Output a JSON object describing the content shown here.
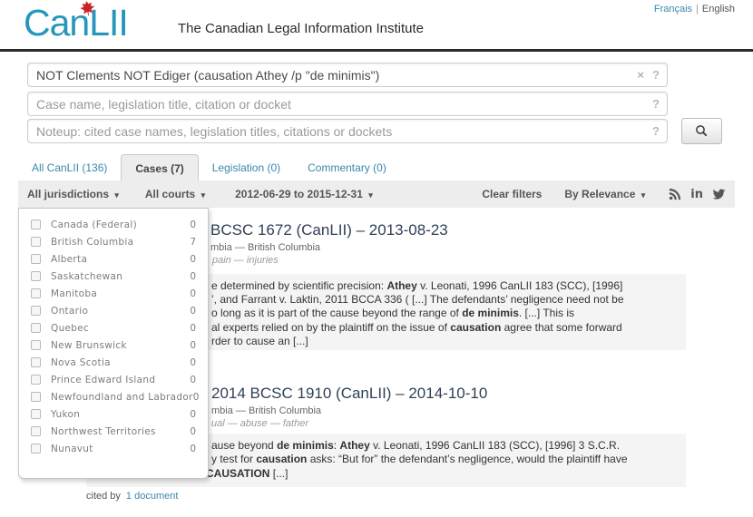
{
  "colors": {
    "logo_blue": "#2597ba",
    "leaf_red": "#cc2127",
    "link_blue": "#3a87ad",
    "filterbar_gray": "#ededed",
    "snippet_gray": "#f4f4f4"
  },
  "header": {
    "logo_text": "CanLII",
    "logo_leaf_icon": "maple-leaf-icon",
    "tagline": "The Canadian Legal Information Institute",
    "lang_french": "Français",
    "lang_separator": "|",
    "lang_english": "English"
  },
  "search": {
    "query": {
      "value": "NOT Clements NOT Ediger (causation Athey /p \"de minimis\")",
      "clear_icon": "×",
      "help_icon": "?"
    },
    "title_field": {
      "placeholder": "Case name, legislation title, citation or docket",
      "help_icon": "?"
    },
    "noteup_field": {
      "placeholder": "Noteup: cited case names, legislation titles, citations or dockets",
      "help_icon": "?"
    },
    "submit_icon": "magnifier-icon"
  },
  "tabs": [
    {
      "id": "all-canlii",
      "label": "All CanLII (136)",
      "active": false
    },
    {
      "id": "cases",
      "label": "Cases (7)",
      "active": true
    },
    {
      "id": "legislation",
      "label": "Legislation (0)",
      "active": false
    },
    {
      "id": "commentary",
      "label": "Commentary (0)",
      "active": false
    }
  ],
  "filters": {
    "jurisdictions_label": "All jurisdictions",
    "courts_label": "All courts",
    "date_range": "2012-06-29 to 2015-12-31",
    "clear_label": "Clear filters",
    "sort_label": "By Relevance",
    "caret": "▾",
    "social_icons": [
      "rss-icon",
      "linkedin-icon",
      "twitter-icon"
    ],
    "linkedin_glyph": "in"
  },
  "jurisdiction_dropdown": {
    "items": [
      {
        "label": "Canada (Federal)",
        "count": "0"
      },
      {
        "label": "British Columbia",
        "count": "7"
      },
      {
        "label": "Alberta",
        "count": "0"
      },
      {
        "label": "Saskatchewan",
        "count": "0"
      },
      {
        "label": "Manitoba",
        "count": "0"
      },
      {
        "label": "Ontario",
        "count": "0"
      },
      {
        "label": "Quebec",
        "count": "0"
      },
      {
        "label": "New Brunswick",
        "count": "0"
      },
      {
        "label": "Nova Scotia",
        "count": "0"
      },
      {
        "label": "Prince Edward Island",
        "count": "0"
      },
      {
        "label": "Newfoundland and Labrador",
        "count": "0"
      },
      {
        "label": "Yukon",
        "count": "0"
      },
      {
        "label": "Northwest Territories",
        "count": "0"
      },
      {
        "label": "Nunavut",
        "count": "0"
      }
    ]
  },
  "results": [
    {
      "title_fragment": "BCSC 1672 (CanLII) – 2013-08-23",
      "court_fragment": "mbia — British Columbia",
      "keywords_fragment": "pain — injuries",
      "snippet_lines": [
        [
          {
            "t": "e determined by scientific precision: "
          },
          {
            "t": "Athey",
            "b": true
          },
          {
            "t": " v. Leonati, 1996 CanLII 183 (SCC), [1996]"
          }
        ],
        [
          {
            "t": "’, and Farrant v. Laktin, 2011 BCCA 336 ( [...]   The defendants’ negligence need not be"
          }
        ],
        [
          {
            "t": "o long as it is part of the cause beyond the range of "
          },
          {
            "t": "de minimis",
            "b": true
          },
          {
            "t": ".  [...]   This is"
          }
        ],
        [
          {
            "t": "al experts relied on by the plaintiff on the issue of "
          },
          {
            "t": "causation",
            "b": true
          },
          {
            "t": " agree that some forward"
          }
        ],
        [
          {
            "t": "rder to cause an   [...]"
          }
        ]
      ]
    },
    {
      "title_fragment": "2014 BCSC 1910 (CanLII) – 2014-10-10",
      "court_fragment": "mbia — British Columbia",
      "keywords_fragment": "ual — abuse — father",
      "snippet_lines": [
        [
          {
            "t": "ause beyond "
          },
          {
            "t": "de minimis",
            "b": true
          },
          {
            "t": ": "
          },
          {
            "t": "Athey",
            "b": true
          },
          {
            "t": " v. Leonati, 1996 CanLII 183 (SCC), [1996] 3 S.C.R."
          }
        ],
        [
          {
            "t": "y test for "
          },
          {
            "t": "causation",
            "b": true
          },
          {
            "t": " asks: “But for” the defendant’s negligence, would the plaintiff have"
          }
        ],
        [
          {
            "t": "CAUSATION",
            "b": true
          },
          {
            "t": "  [...]"
          }
        ]
      ],
      "cited_by_label": "cited by",
      "cited_by_link": "1 document"
    }
  ]
}
